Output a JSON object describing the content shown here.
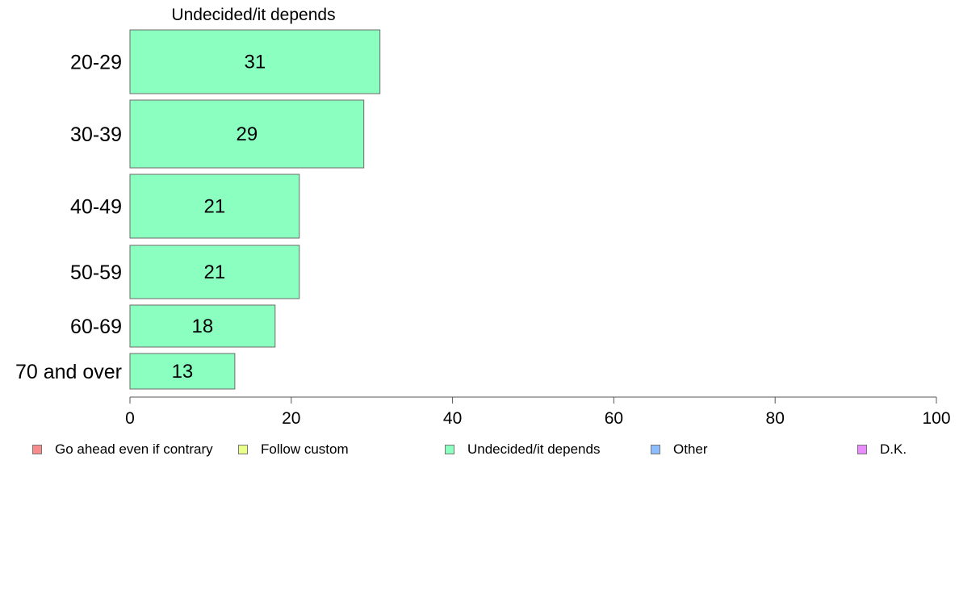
{
  "chart_data": {
    "type": "bar",
    "orientation": "horizontal",
    "title": "Undecided/it depends",
    "categories": [
      "20-29",
      "30-39",
      "40-49",
      "50-59",
      "60-69",
      "70 and over"
    ],
    "series": [
      {
        "name": "Undecided/it depends",
        "values": [
          31,
          29,
          21,
          21,
          18,
          13
        ],
        "color": "#8bffc0"
      }
    ],
    "xlim": [
      0,
      100
    ],
    "xticks": [
      0,
      20,
      40,
      60,
      80,
      100
    ],
    "grid": false,
    "legend_position": "bottom",
    "legend": [
      {
        "label": "Go ahead even if contrary",
        "color": "#f88b8b"
      },
      {
        "label": "Follow custom",
        "color": "#eaff8b"
      },
      {
        "label": "Undecided/it depends",
        "color": "#8bffc0"
      },
      {
        "label": "Other",
        "color": "#8bbdff"
      },
      {
        "label": "D.K.",
        "color": "#ea8bff"
      }
    ]
  }
}
